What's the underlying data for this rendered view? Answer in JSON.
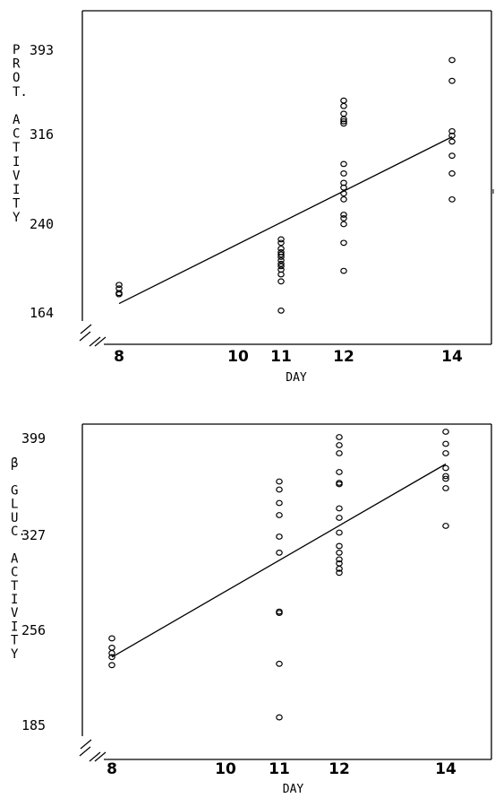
{
  "chart_data": [
    {
      "type": "scatter",
      "ylabel_lines": [
        "P",
        "R",
        "O",
        "T.",
        "",
        "A",
        "C",
        "T",
        "I",
        "V",
        "I",
        "T",
        "Y"
      ],
      "xlabel": "DAY",
      "x_ticks": [
        "8",
        "10",
        "11",
        "12",
        "14"
      ],
      "y_ticks": [
        "164",
        "240",
        "316",
        "393"
      ],
      "xlim": [
        7.5,
        15.0
      ],
      "ylim": [
        164,
        393
      ],
      "points": [
        {
          "x": 8,
          "y": 188
        },
        {
          "x": 8,
          "y": 185
        },
        {
          "x": 8,
          "y": 181
        },
        {
          "x": 8,
          "y": 180
        },
        {
          "x": 11,
          "y": 166
        },
        {
          "x": 11,
          "y": 191
        },
        {
          "x": 11,
          "y": 197
        },
        {
          "x": 11,
          "y": 201
        },
        {
          "x": 11,
          "y": 204
        },
        {
          "x": 11,
          "y": 206
        },
        {
          "x": 11,
          "y": 209
        },
        {
          "x": 11,
          "y": 212
        },
        {
          "x": 11,
          "y": 214
        },
        {
          "x": 11,
          "y": 216
        },
        {
          "x": 11,
          "y": 219
        },
        {
          "x": 11,
          "y": 224
        },
        {
          "x": 11,
          "y": 227
        },
        {
          "x": 12,
          "y": 200
        },
        {
          "x": 12,
          "y": 224
        },
        {
          "x": 12,
          "y": 240
        },
        {
          "x": 12,
          "y": 245
        },
        {
          "x": 12,
          "y": 248
        },
        {
          "x": 12,
          "y": 261
        },
        {
          "x": 12,
          "y": 266
        },
        {
          "x": 12,
          "y": 271
        },
        {
          "x": 12,
          "y": 275
        },
        {
          "x": 12,
          "y": 283
        },
        {
          "x": 12,
          "y": 291
        },
        {
          "x": 12,
          "y": 326
        },
        {
          "x": 12,
          "y": 328
        },
        {
          "x": 12,
          "y": 330
        },
        {
          "x": 12,
          "y": 335
        },
        {
          "x": 12,
          "y": 342
        },
        {
          "x": 12,
          "y": 347
        },
        {
          "x": 14,
          "y": 261
        },
        {
          "x": 14,
          "y": 283
        },
        {
          "x": 14,
          "y": 298
        },
        {
          "x": 14,
          "y": 310
        },
        {
          "x": 14,
          "y": 315
        },
        {
          "x": 14,
          "y": 319
        },
        {
          "x": 14,
          "y": 365
        },
        {
          "x": 14,
          "y": 384
        }
      ],
      "regression_line": {
        "x": [
          8,
          14
        ],
        "y": [
          172,
          314
        ]
      }
    },
    {
      "type": "scatter",
      "ylabel_lines": [
        "β",
        "",
        "G",
        "L",
        "U",
        "C.",
        "",
        "A",
        "C",
        "T",
        "I",
        "V",
        "I",
        "T",
        "Y"
      ],
      "xlabel": "DAY",
      "x_ticks": [
        "8",
        "10",
        "11",
        "12",
        "14"
      ],
      "y_ticks": [
        "185",
        "256",
        "327",
        "399"
      ],
      "xlim": [
        7.5,
        15.0
      ],
      "ylim": [
        185,
        399
      ],
      "points": [
        {
          "x": 8,
          "y": 250
        },
        {
          "x": 8,
          "y": 243
        },
        {
          "x": 8,
          "y": 239
        },
        {
          "x": 8,
          "y": 236
        },
        {
          "x": 8,
          "y": 230
        },
        {
          "x": 11,
          "y": 191
        },
        {
          "x": 11,
          "y": 231
        },
        {
          "x": 11,
          "y": 269
        },
        {
          "x": 11,
          "y": 270
        },
        {
          "x": 11,
          "y": 314
        },
        {
          "x": 11,
          "y": 326
        },
        {
          "x": 11,
          "y": 342
        },
        {
          "x": 11,
          "y": 351
        },
        {
          "x": 11,
          "y": 361
        },
        {
          "x": 11,
          "y": 367
        },
        {
          "x": 12,
          "y": 299
        },
        {
          "x": 12,
          "y": 302
        },
        {
          "x": 12,
          "y": 306
        },
        {
          "x": 12,
          "y": 309
        },
        {
          "x": 12,
          "y": 314
        },
        {
          "x": 12,
          "y": 319
        },
        {
          "x": 12,
          "y": 329
        },
        {
          "x": 12,
          "y": 340
        },
        {
          "x": 12,
          "y": 347
        },
        {
          "x": 12,
          "y": 365
        },
        {
          "x": 12,
          "y": 366
        },
        {
          "x": 12,
          "y": 374
        },
        {
          "x": 12,
          "y": 388
        },
        {
          "x": 12,
          "y": 394
        },
        {
          "x": 12,
          "y": 400
        },
        {
          "x": 14,
          "y": 334
        },
        {
          "x": 14,
          "y": 362
        },
        {
          "x": 14,
          "y": 369
        },
        {
          "x": 14,
          "y": 371
        },
        {
          "x": 14,
          "y": 377
        },
        {
          "x": 14,
          "y": 388
        },
        {
          "x": 14,
          "y": 395
        },
        {
          "x": 14,
          "y": 404
        }
      ],
      "regression_line": {
        "x": [
          8,
          14
        ],
        "y": [
          236,
          380
        ]
      }
    }
  ]
}
